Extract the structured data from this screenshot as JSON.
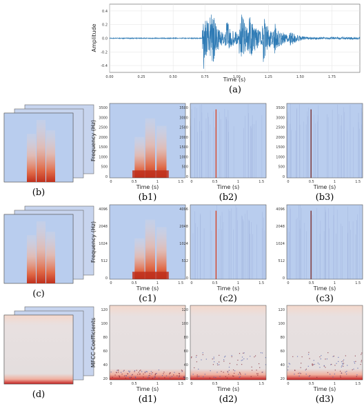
{
  "waveform": {
    "caption": "(a)",
    "xlabel": "Time (s)",
    "ylabel": "Amplitude",
    "x_ticks": [
      "0.00",
      "0.25",
      "0.50",
      "0.75",
      "1.00",
      "1.25",
      "1.50",
      "1.75"
    ],
    "y_ticks": [
      "0.4",
      "0.2",
      "0.0",
      "-0.2",
      "-0.4"
    ]
  },
  "rows": [
    {
      "stack_caption": "(b)",
      "ylabel": "Frequency (Hz)",
      "y_ticks": [
        "3500",
        "3000",
        "2500",
        "2000",
        "1500",
        "1000",
        "500",
        "0"
      ],
      "x_ticks": [
        "0",
        "0.5",
        "1",
        "1.5"
      ],
      "xlabel": "Time (s)",
      "captions": [
        "(b1)",
        "(b2)",
        "(b3)"
      ]
    },
    {
      "stack_caption": "(c)",
      "ylabel": "Frequency (Hz)",
      "y_ticks": [
        "4096",
        "2048",
        "1024",
        "512",
        "0"
      ],
      "x_ticks": [
        "0",
        "0.5",
        "1",
        "1.5"
      ],
      "xlabel": "Time (s)",
      "captions": [
        "(c1)",
        "(c2)",
        "(c3)"
      ]
    },
    {
      "stack_caption": "(d)",
      "ylabel": "MFCC Coefficients",
      "y_ticks": [
        "120",
        "100",
        "80",
        "60",
        "40",
        "20"
      ],
      "x_ticks": [
        "0",
        "0.5",
        "1",
        "1.5"
      ],
      "xlabel": "Time (s)",
      "captions": [
        "(d1)",
        "(d2)",
        "(d3)"
      ]
    }
  ],
  "colors": {
    "wave": "#2f7bb5",
    "cool": "#b9cdee",
    "warm": "#d9482b",
    "grid": "#dddddd"
  }
}
